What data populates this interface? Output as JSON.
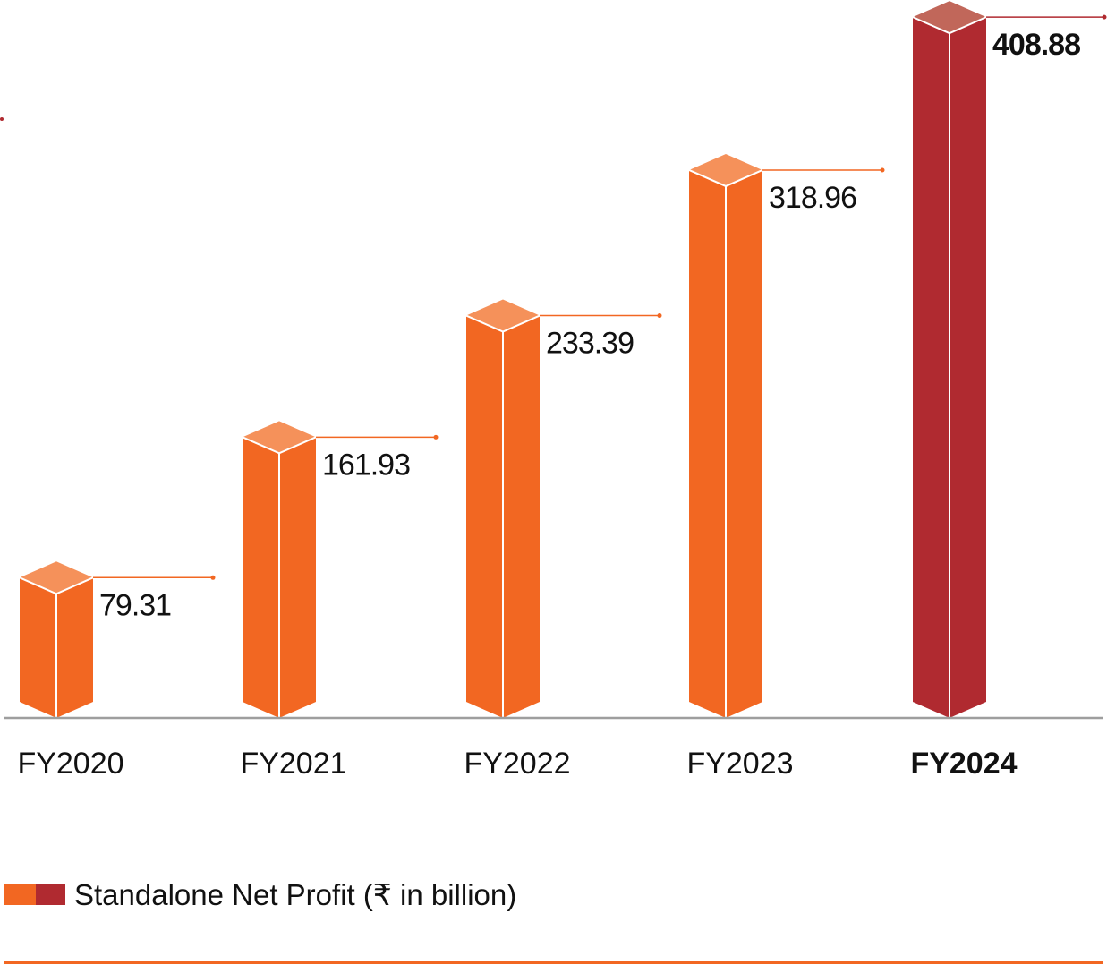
{
  "chart_data": {
    "type": "bar",
    "categories": [
      "FY2020",
      "FY2021",
      "FY2022",
      "FY2023",
      "FY2024"
    ],
    "values": [
      79.31,
      161.93,
      233.39,
      318.96,
      408.88
    ],
    "value_labels": [
      "79.31",
      "161.93",
      "233.39",
      "318.96",
      "408.88"
    ],
    "highlight_category": "FY2024",
    "series": [
      {
        "name": "Standalone Net Profit (₹ in billion)",
        "values": [
          79.31,
          161.93,
          233.39,
          318.96,
          408.88
        ]
      }
    ],
    "legend": {
      "label": "Standalone Net Profit (₹ in billion)",
      "placement": "bottom-left"
    },
    "grid": false,
    "style": "3d-column",
    "colors": {
      "bar": "#F26722",
      "bar_top": "#F5915A",
      "highlight": "#B02A30",
      "highlight_top": "#C1675A",
      "baseline": "#9E9E9E",
      "rule": "#F26722"
    }
  }
}
